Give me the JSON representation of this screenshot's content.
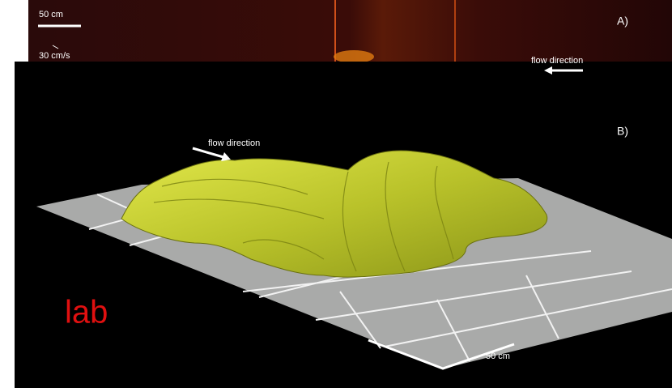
{
  "panel_a": {
    "scale_bar": "50 cm",
    "label": "A)",
    "velocity_scale": "30 cm/s",
    "flow_label": "flow direction"
  },
  "panel_b": {
    "label": "B)",
    "flow_label": "flow direction",
    "annotation": "lab",
    "scale_bar": "50 cm"
  }
}
